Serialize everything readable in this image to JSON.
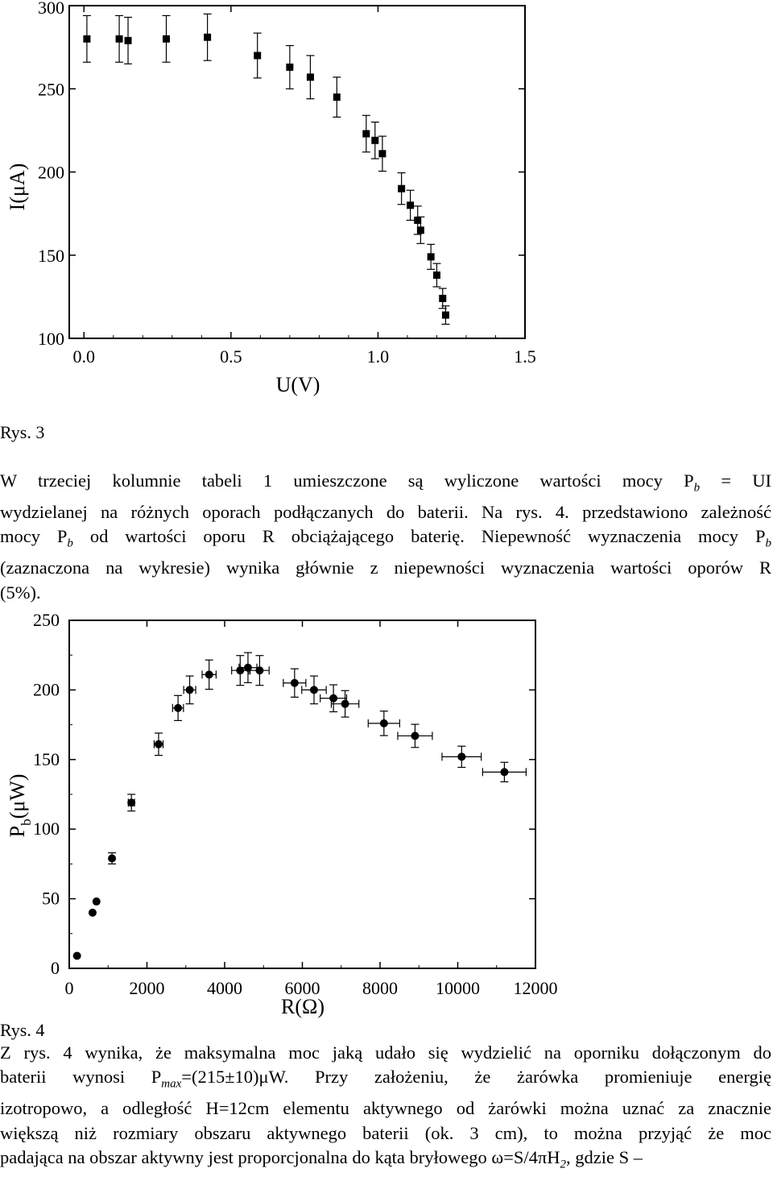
{
  "figure1": {
    "caption": "Rys. 3",
    "chart_data": {
      "type": "scatter",
      "xlabel": "U(V)",
      "ylabel": "I(μA)",
      "xlim": [
        -0.05,
        1.5
      ],
      "ylim": [
        100,
        300
      ],
      "xticks": [
        "0.0",
        "0.5",
        "1.0",
        "1.5"
      ],
      "yticks": [
        "100",
        "150",
        "200",
        "250",
        "300"
      ],
      "marker": "square",
      "error_bars": "y",
      "points": [
        {
          "x": 0.01,
          "y": 280,
          "yerr": 14
        },
        {
          "x": 0.12,
          "y": 280,
          "yerr": 14
        },
        {
          "x": 0.15,
          "y": 279,
          "yerr": 14
        },
        {
          "x": 0.28,
          "y": 280,
          "yerr": 14
        },
        {
          "x": 0.42,
          "y": 281,
          "yerr": 14
        },
        {
          "x": 0.59,
          "y": 270,
          "yerr": 13.5
        },
        {
          "x": 0.7,
          "y": 263,
          "yerr": 13
        },
        {
          "x": 0.77,
          "y": 257,
          "yerr": 13
        },
        {
          "x": 0.86,
          "y": 245,
          "yerr": 12
        },
        {
          "x": 0.96,
          "y": 223,
          "yerr": 11
        },
        {
          "x": 0.99,
          "y": 219,
          "yerr": 11
        },
        {
          "x": 1.015,
          "y": 211,
          "yerr": 10.5
        },
        {
          "x": 1.08,
          "y": 190,
          "yerr": 9.5
        },
        {
          "x": 1.11,
          "y": 180,
          "yerr": 9
        },
        {
          "x": 1.135,
          "y": 171,
          "yerr": 8.5
        },
        {
          "x": 1.145,
          "y": 165,
          "yerr": 8
        },
        {
          "x": 1.18,
          "y": 149,
          "yerr": 7.5
        },
        {
          "x": 1.2,
          "y": 138,
          "yerr": 7
        },
        {
          "x": 1.22,
          "y": 124,
          "yerr": 6
        },
        {
          "x": 1.23,
          "y": 114,
          "yerr": 5.5
        }
      ]
    }
  },
  "paragraph1": {
    "lines": [
      [
        "W trzeciej kolumnie tabeli 1 umieszczone są wyliczone wartości mocy P",
        "b",
        " = UI"
      ],
      [
        "wydzielanej na różnych oporach podłączanych do baterii. Na rys. 4. przedstawiono zależność"
      ],
      [
        "mocy P",
        "b",
        " od wartości oporu R obciążającego baterię. Niepewność wyznaczenia mocy P",
        "b"
      ],
      [
        "(zaznaczona na wykresie) wynika głównie z niepewności wyznaczenia wartości oporów R"
      ],
      [
        "(5%)."
      ]
    ]
  },
  "figure2": {
    "caption": "Rys. 4",
    "chart_data": {
      "type": "scatter",
      "xlabel": "R(Ω)",
      "ylabel": "P b (μW)",
      "xlim": [
        0,
        12000
      ],
      "ylim": [
        0,
        250
      ],
      "xticks": [
        "0",
        "2000",
        "4000",
        "6000",
        "8000",
        "10000",
        "12000"
      ],
      "yticks": [
        "0",
        "50",
        "100",
        "150",
        "200",
        "250"
      ],
      "marker": "circle",
      "error_bars": "xy",
      "points": [
        {
          "x": 200,
          "y": 9,
          "xerr": 10,
          "yerr": 0
        },
        {
          "x": 600,
          "y": 40,
          "xerr": 30,
          "yerr": 0
        },
        {
          "x": 700,
          "y": 48,
          "xerr": 35,
          "yerr": 0
        },
        {
          "x": 1100,
          "y": 79,
          "xerr": 55,
          "yerr": 4
        },
        {
          "x": 1600,
          "y": 119,
          "xerr": 80,
          "yerr": 6
        },
        {
          "x": 2300,
          "y": 161,
          "xerr": 115,
          "yerr": 8
        },
        {
          "x": 2800,
          "y": 187,
          "xerr": 140,
          "yerr": 9
        },
        {
          "x": 3100,
          "y": 200,
          "xerr": 155,
          "yerr": 10
        },
        {
          "x": 3600,
          "y": 211,
          "xerr": 180,
          "yerr": 10.5
        },
        {
          "x": 4400,
          "y": 214,
          "xerr": 220,
          "yerr": 10.7
        },
        {
          "x": 4600,
          "y": 216,
          "xerr": 230,
          "yerr": 10.8
        },
        {
          "x": 4900,
          "y": 214,
          "xerr": 245,
          "yerr": 10.7
        },
        {
          "x": 5800,
          "y": 205,
          "xerr": 290,
          "yerr": 10.2
        },
        {
          "x": 6300,
          "y": 200,
          "xerr": 315,
          "yerr": 10
        },
        {
          "x": 6800,
          "y": 194,
          "xerr": 340,
          "yerr": 9.7
        },
        {
          "x": 7100,
          "y": 190,
          "xerr": 355,
          "yerr": 9.5
        },
        {
          "x": 8100,
          "y": 176,
          "xerr": 405,
          "yerr": 8.8
        },
        {
          "x": 8900,
          "y": 167,
          "xerr": 445,
          "yerr": 8.3
        },
        {
          "x": 10100,
          "y": 152,
          "xerr": 505,
          "yerr": 7.6
        },
        {
          "x": 11200,
          "y": 141,
          "xerr": 560,
          "yerr": 7
        }
      ]
    }
  },
  "paragraph2": {
    "lines": [
      [
        "Z rys. 4 wynika, że maksymalna moc jaką udało się wydzielić na oporniku dołączonym do"
      ],
      [
        "baterii wynosi P",
        "max",
        "=(215±10)μW. Przy założeniu, że żarówka promieniuje energię"
      ],
      [
        "izotropowo, a odległość H=12cm elementu aktywnego  od żarówki można uznać za znacznie"
      ],
      [
        "większą niż rozmiary obszaru aktywnego baterii (ok. 3 cm), to można przyjąć że moc"
      ],
      [
        "padająca na obszar aktywny jest proporcjonalna do kąta bryłowego  ω=S/4πH",
        "2",
        ", gdzie S –"
      ]
    ]
  }
}
